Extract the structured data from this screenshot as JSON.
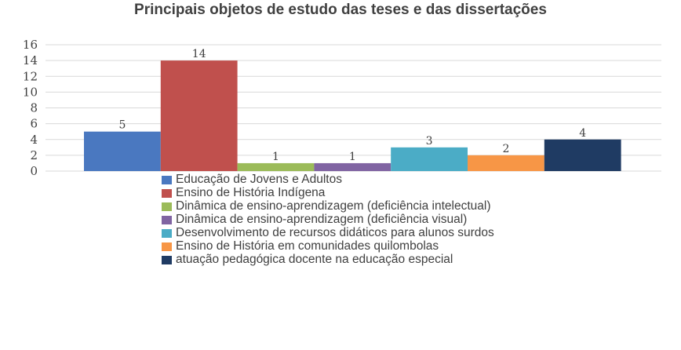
{
  "chart_data": {
    "type": "bar",
    "title": "Principais objetos de estudo das teses e das dissertações",
    "xlabel": "",
    "ylabel": "",
    "ylim": [
      0,
      16
    ],
    "yticks": [
      0,
      2,
      4,
      6,
      8,
      10,
      12,
      14,
      16
    ],
    "grid": true,
    "legend_position": "bottom",
    "series": [
      {
        "name": "Educação de Jovens e Adultos",
        "value": 5,
        "color": "#4a78c0"
      },
      {
        "name": "Ensino de História Indígena",
        "value": 14,
        "color": "#c0504d"
      },
      {
        "name": "Dinâmica de ensino-aprendizagem (deficiência intelectual)",
        "value": 1,
        "color": "#9bbb59"
      },
      {
        "name": "Dinâmica de ensino-aprendizagem (deficiência visual)",
        "value": 1,
        "color": "#8064a2"
      },
      {
        "name": "Desenvolvimento de recursos didáticos para alunos surdos",
        "value": 3,
        "color": "#4bacc6"
      },
      {
        "name": "Ensino de História em comunidades quilombolas",
        "value": 2,
        "color": "#f79646"
      },
      {
        "name": "atuação pedagógica docente na educação especial",
        "value": 4,
        "color": "#1f3b63"
      }
    ]
  }
}
